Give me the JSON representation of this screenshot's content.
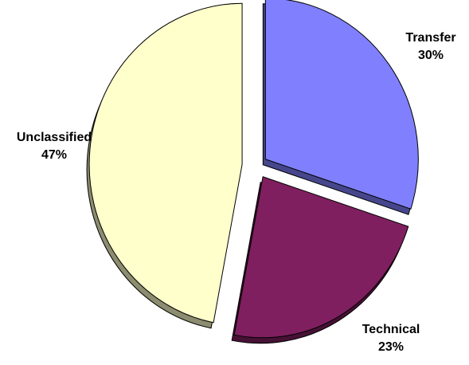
{
  "chart_data": {
    "type": "pie",
    "title": "",
    "exploded": true,
    "three_d": true,
    "slices": [
      {
        "label": "Transfer",
        "value": 30,
        "display": "30%",
        "color": "#8080FF"
      },
      {
        "label": "Technical",
        "value": 23,
        "display": "23%",
        "color": "#7F1F5F"
      },
      {
        "label": "Unclassified",
        "value": 47,
        "display": "47%",
        "color": "#FFFFCC"
      }
    ]
  }
}
